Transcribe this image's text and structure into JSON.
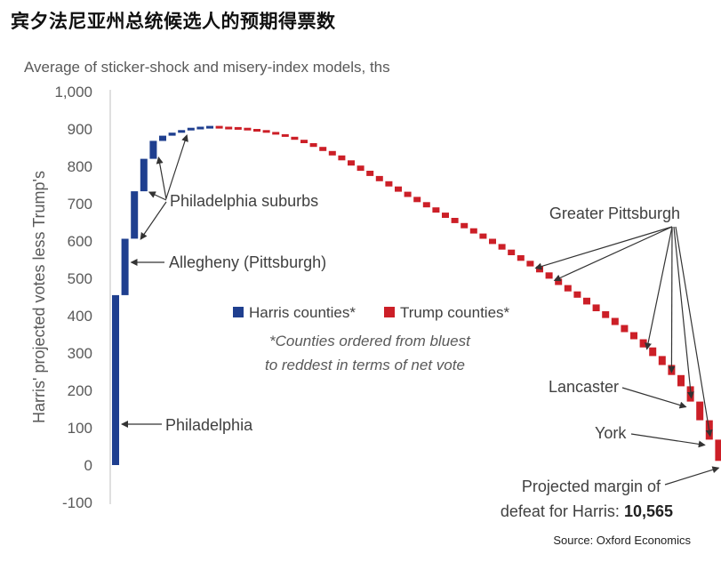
{
  "header": {
    "title": "宾夕法尼亚州总统候选人的预期得票数",
    "subtitle": "Average of sticker-shock and misery-index models, ths",
    "source": "Source: Oxford Economics"
  },
  "chart_data": {
    "type": "waterfall",
    "ylabel": "Harris' projected votes less Trump's",
    "ylim": [
      -100,
      1000
    ],
    "yticks": [
      "1,000",
      "900",
      "800",
      "700",
      "600",
      "500",
      "400",
      "300",
      "200",
      "100",
      "0",
      "-100"
    ],
    "yticks_values": [
      1000,
      900,
      800,
      700,
      600,
      500,
      400,
      300,
      200,
      100,
      0,
      -100
    ],
    "series": [
      {
        "name": "Harris counties*",
        "color": "#1f3f8f"
      },
      {
        "name": "Trump counties*",
        "color": "#cc1f27"
      }
    ],
    "cumulative_harris": [
      455,
      606,
      733,
      820,
      868,
      882,
      890,
      897,
      903,
      906,
      908
    ],
    "cumulative_trump": [
      906,
      905,
      903,
      900,
      897,
      892,
      886,
      879,
      871,
      862,
      852,
      841,
      829,
      816,
      802,
      788,
      774,
      760,
      746,
      732,
      718,
      704,
      690,
      676,
      662,
      648,
      634,
      620,
      606,
      592,
      577,
      562,
      547,
      532,
      516,
      499,
      482,
      465,
      448,
      430,
      412,
      394,
      375,
      356,
      337,
      315,
      292,
      268,
      241,
      211,
      170,
      120,
      68,
      11
    ],
    "footnote_lines": [
      "*Counties ordered from bluest",
      "to reddest in terms of net vote"
    ],
    "annotations": {
      "philadelphia": "Philadelphia",
      "allegheny": "Allegheny (Pittsburgh)",
      "philly_suburbs": "Philadelphia suburbs",
      "greater_pittsburgh": "Greater Pittsburgh",
      "lancaster": "Lancaster",
      "york": "York",
      "margin_line1": "Projected margin of",
      "margin_line2": "defeat for Harris:",
      "margin_value": "10,565"
    }
  }
}
